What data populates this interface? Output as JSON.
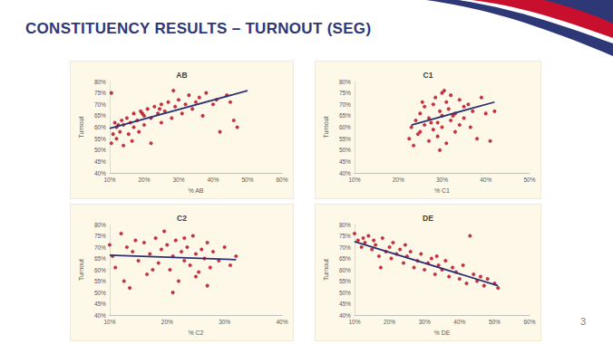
{
  "slide": {
    "title": "CONSTITUENCY RESULTS – TURNOUT (SEG)",
    "page": 3
  },
  "chart_data": [
    {
      "type": "scatter",
      "title": "AB",
      "x_label": "% AB",
      "y_label": "Turnout",
      "grid": false,
      "xlim": [
        10,
        60
      ],
      "xticks": [
        {
          "value": 10,
          "label": "10%"
        },
        {
          "value": 20,
          "label": "20%"
        },
        {
          "value": 30,
          "label": "30%"
        },
        {
          "value": 40,
          "label": "40%"
        },
        {
          "value": 50,
          "label": "50%"
        },
        {
          "value": 60,
          "label": "60%"
        }
      ],
      "ylim": [
        40,
        80
      ],
      "yticks": [
        {
          "value": 40,
          "label": "40%"
        },
        {
          "value": 45,
          "label": "45%"
        },
        {
          "value": 50,
          "label": "50%"
        },
        {
          "value": 55,
          "label": "55%"
        },
        {
          "value": 60,
          "label": "60%"
        },
        {
          "value": 65,
          "label": "65%"
        },
        {
          "value": 70,
          "label": "70%"
        },
        {
          "value": 75,
          "label": "75%"
        },
        {
          "value": 80,
          "label": "80%"
        }
      ],
      "series": [
        {
          "type": "scatter",
          "color": "#c00018",
          "marker": "circle",
          "x": [
            10.5,
            11,
            11.5,
            12,
            12,
            13,
            13.5,
            14,
            14,
            15,
            15.5,
            16,
            17,
            17,
            18,
            18.5,
            19,
            20,
            20,
            21,
            22,
            22,
            23,
            24,
            25,
            25,
            26,
            27,
            28,
            29,
            30,
            31,
            32,
            33,
            34,
            35,
            36,
            37,
            38,
            40,
            41,
            42,
            44,
            45,
            46,
            47,
            10.5,
            12.5,
            16.5,
            19.5,
            24.5,
            28.5
          ],
          "values": [
            75,
            57,
            62,
            55,
            60,
            58,
            63,
            52,
            61,
            64,
            57,
            62,
            60,
            66,
            63,
            58,
            67,
            65,
            61,
            68,
            64,
            53,
            69,
            66,
            62,
            70,
            67,
            71,
            64,
            69,
            72,
            66,
            70,
            74,
            68,
            71,
            73,
            65,
            75,
            70,
            72,
            58,
            74,
            71,
            63,
            60,
            53,
            61,
            54,
            66,
            68,
            76
          ]
        },
        {
          "type": "line",
          "color": "#2e3170",
          "line_style": "solid",
          "x": [
            10,
            50
          ],
          "values": [
            59.5,
            76
          ]
        }
      ]
    },
    {
      "type": "scatter",
      "title": "C1",
      "x_label": "% C1",
      "y_label": "Turnout",
      "grid": false,
      "xlim": [
        10,
        50
      ],
      "xticks": [
        {
          "value": 10,
          "label": "10%"
        },
        {
          "value": 20,
          "label": "20%"
        },
        {
          "value": 30,
          "label": "30%"
        },
        {
          "value": 40,
          "label": "40%"
        },
        {
          "value": 50,
          "label": "50%"
        }
      ],
      "ylim": [
        40,
        80
      ],
      "yticks": [
        {
          "value": 40,
          "label": "40%"
        },
        {
          "value": 45,
          "label": "45%"
        },
        {
          "value": 50,
          "label": "50%"
        },
        {
          "value": 55,
          "label": "55%"
        },
        {
          "value": 60,
          "label": "60%"
        },
        {
          "value": 65,
          "label": "65%"
        },
        {
          "value": 70,
          "label": "70%"
        },
        {
          "value": 75,
          "label": "75%"
        },
        {
          "value": 80,
          "label": "80%"
        }
      ],
      "series": [
        {
          "type": "scatter",
          "color": "#c00018",
          "marker": "circle",
          "x": [
            22.5,
            23,
            23.5,
            24,
            24.5,
            25,
            25,
            26,
            26,
            27,
            27,
            28,
            28,
            28.5,
            29,
            29,
            29.5,
            30,
            30,
            30,
            31,
            31,
            31.5,
            32,
            32,
            33,
            33,
            34,
            34,
            35,
            35,
            36,
            37,
            38,
            39,
            40,
            41,
            42,
            25.5,
            27.5,
            29.5,
            30.5,
            32.5,
            36.5
          ],
          "values": [
            55,
            60,
            52,
            63,
            57,
            66,
            58,
            61,
            69,
            54,
            64,
            70,
            59,
            73,
            62,
            56,
            67,
            75,
            65,
            60,
            71,
            53,
            68,
            63,
            74,
            66,
            58,
            72,
            61,
            69,
            64,
            70,
            67,
            55,
            73,
            66,
            54,
            67,
            71,
            62,
            50,
            76,
            65,
            60
          ]
        },
        {
          "type": "line",
          "color": "#2e3170",
          "line_style": "solid",
          "x": [
            23,
            42
          ],
          "values": [
            61,
            71
          ]
        }
      ]
    },
    {
      "type": "scatter",
      "title": "C2",
      "x_label": "% C2",
      "y_label": "Turnout",
      "grid": false,
      "xlim": [
        10,
        40
      ],
      "xticks": [
        {
          "value": 10,
          "label": "10%"
        },
        {
          "value": 20,
          "label": "20%"
        },
        {
          "value": 30,
          "label": "30%"
        },
        {
          "value": 40,
          "label": "40%"
        }
      ],
      "ylim": [
        40,
        80
      ],
      "yticks": [
        {
          "value": 40,
          "label": "40%"
        },
        {
          "value": 45,
          "label": "45%"
        },
        {
          "value": 50,
          "label": "50%"
        },
        {
          "value": 55,
          "label": "55%"
        },
        {
          "value": 60,
          "label": "60%"
        },
        {
          "value": 65,
          "label": "65%"
        },
        {
          "value": 70,
          "label": "70%"
        },
        {
          "value": 75,
          "label": "75%"
        },
        {
          "value": 80,
          "label": "80%"
        }
      ],
      "series": [
        {
          "type": "scatter",
          "color": "#c00018",
          "marker": "circle",
          "x": [
            10,
            10.5,
            11,
            12,
            12.5,
            13,
            14,
            14.5,
            15,
            16,
            16.5,
            17,
            18,
            18.5,
            19,
            20,
            20.5,
            21,
            21.5,
            22,
            22.5,
            23,
            23.5,
            24,
            24.5,
            25,
            25.5,
            26,
            26.5,
            27,
            27.5,
            28,
            29,
            30,
            31,
            32,
            13.5,
            17.5,
            19.5,
            21,
            23,
            25,
            27
          ],
          "values": [
            71,
            66,
            61,
            76,
            55,
            70,
            68,
            73,
            64,
            72,
            58,
            67,
            74,
            63,
            69,
            71,
            60,
            66,
            73,
            55,
            68,
            64,
            70,
            62,
            75,
            67,
            59,
            69,
            65,
            72,
            61,
            68,
            64,
            70,
            62,
            66,
            52,
            60,
            77,
            50,
            74,
            57,
            53
          ]
        },
        {
          "type": "line",
          "color": "#2e3170",
          "line_style": "solid",
          "x": [
            10,
            32
          ],
          "values": [
            66.5,
            64.5
          ]
        }
      ]
    },
    {
      "type": "scatter",
      "title": "DE",
      "x_label": "% DE",
      "y_label": "Turnout",
      "grid": false,
      "xlim": [
        10,
        60
      ],
      "xticks": [
        {
          "value": 10,
          "label": "10%"
        },
        {
          "value": 20,
          "label": "20%"
        },
        {
          "value": 30,
          "label": "30%"
        },
        {
          "value": 40,
          "label": "40%"
        },
        {
          "value": 50,
          "label": "50%"
        },
        {
          "value": 60,
          "label": "60%"
        }
      ],
      "ylim": [
        40,
        80
      ],
      "yticks": [
        {
          "value": 40,
          "label": "40%"
        },
        {
          "value": 45,
          "label": "45%"
        },
        {
          "value": 50,
          "label": "50%"
        },
        {
          "value": 55,
          "label": "55%"
        },
        {
          "value": 60,
          "label": "60%"
        },
        {
          "value": 65,
          "label": "65%"
        },
        {
          "value": 70,
          "label": "70%"
        },
        {
          "value": 75,
          "label": "75%"
        },
        {
          "value": 80,
          "label": "80%"
        }
      ],
      "series": [
        {
          "type": "scatter",
          "color": "#c00018",
          "marker": "circle",
          "x": [
            10,
            11,
            12,
            12.5,
            13,
            14,
            15,
            15.5,
            16,
            17,
            18,
            19,
            20,
            20.5,
            21,
            22,
            23,
            24,
            25,
            26,
            27,
            28,
            29,
            30,
            31,
            32,
            33,
            34,
            35,
            36,
            37,
            38,
            39,
            40,
            41,
            42,
            43,
            44,
            45,
            46,
            47,
            48,
            50,
            51,
            17.5,
            24.5,
            33.5
          ],
          "values": [
            76,
            73,
            70,
            74,
            72,
            75,
            69,
            73,
            71,
            66,
            74,
            68,
            70,
            65,
            72,
            67,
            69,
            63,
            66,
            68,
            61,
            64,
            67,
            60,
            63,
            65,
            58,
            62,
            60,
            64,
            57,
            61,
            59,
            56,
            62,
            54,
            75,
            58,
            55,
            57,
            53,
            56,
            54,
            52,
            61,
            71,
            66
          ]
        },
        {
          "type": "line",
          "color": "#2e3170",
          "line_style": "solid",
          "x": [
            10,
            51
          ],
          "values": [
            72.5,
            53
          ]
        }
      ]
    }
  ]
}
